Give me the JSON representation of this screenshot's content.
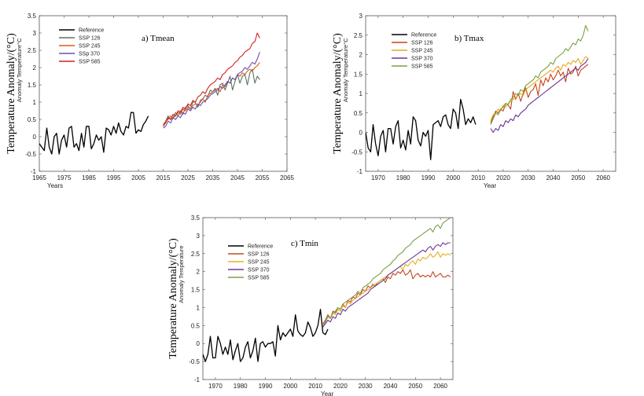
{
  "chart_data": [
    {
      "type": "line",
      "panel_title": "a) Tmean",
      "outer_ylabel": "Temperature Anomaly/(°C)",
      "ylabel": "Anomaly Temperature°C",
      "xlabel": "Years",
      "xlim": [
        1965,
        2065
      ],
      "ylim": [
        -1,
        3.5
      ],
      "xticks": [
        1965,
        1975,
        1985,
        1995,
        2005,
        2015,
        2025,
        2035,
        2045,
        2055,
        2065
      ],
      "yticks": [
        -1,
        -0.5,
        0,
        0.5,
        1,
        1.5,
        2,
        2.5,
        3,
        3.5
      ],
      "legend_position": "top-left",
      "series": [
        {
          "name": "Reference",
          "color": "#000000",
          "x_start": 1965,
          "values": [
            -0.2,
            -0.3,
            -0.4,
            0.25,
            -0.3,
            -0.5,
            0.0,
            0.1,
            -0.5,
            -0.1,
            0.05,
            -0.3,
            0.25,
            0.3,
            -0.3,
            -0.2,
            -0.4,
            0.1,
            -0.3,
            0.3,
            0.3,
            -0.35,
            -0.2,
            0.05,
            -0.1,
            0.0,
            -0.45,
            0.25,
            0.2,
            0.05,
            0.3,
            0.1,
            0.4,
            0.15,
            0.05,
            0.3,
            0.25,
            0.7,
            0.7,
            0.1,
            0.2,
            0.15,
            0.35,
            0.45,
            0.6
          ]
        },
        {
          "name": "SSP 126",
          "color": "#5a7560",
          "x_start": 2015,
          "values": [
            0.35,
            0.45,
            0.6,
            0.5,
            0.55,
            0.7,
            0.6,
            0.75,
            0.65,
            0.85,
            0.9,
            0.8,
            1.0,
            1.0,
            0.85,
            1.05,
            1.1,
            1.2,
            1.15,
            1.35,
            1.3,
            1.4,
            1.2,
            1.5,
            1.55,
            1.35,
            1.55,
            1.75,
            1.35,
            1.6,
            1.8,
            1.55,
            1.75,
            1.8,
            1.5,
            1.85,
            1.95,
            1.55,
            1.75,
            1.65
          ]
        },
        {
          "name": "SSP 245",
          "color": "#e05a1a",
          "x_start": 2015,
          "values": [
            0.3,
            0.45,
            0.5,
            0.6,
            0.55,
            0.6,
            0.7,
            0.65,
            0.8,
            0.75,
            0.85,
            0.8,
            0.9,
            0.95,
            0.9,
            1.0,
            1.1,
            1.0,
            1.2,
            1.25,
            1.3,
            1.35,
            1.4,
            1.3,
            1.5,
            1.45,
            1.6,
            1.55,
            1.7,
            1.65,
            1.8,
            1.75,
            1.85,
            1.8,
            1.9,
            1.95,
            1.9,
            2.0,
            2.05,
            2.15
          ]
        },
        {
          "name": "SSp 370",
          "color": "#6b50b0",
          "x_start": 2015,
          "values": [
            0.25,
            0.3,
            0.45,
            0.4,
            0.55,
            0.5,
            0.6,
            0.55,
            0.7,
            0.65,
            0.8,
            0.75,
            0.85,
            0.8,
            0.95,
            0.9,
            1.0,
            1.05,
            1.1,
            1.2,
            1.25,
            1.3,
            1.35,
            1.45,
            1.4,
            1.5,
            1.6,
            1.55,
            1.7,
            1.65,
            1.8,
            1.85,
            1.9,
            2.0,
            1.95,
            2.05,
            2.15,
            2.1,
            2.25,
            2.45
          ]
        },
        {
          "name": "SSP 585",
          "color": "#d42020",
          "x_start": 2015,
          "values": [
            0.3,
            0.4,
            0.55,
            0.5,
            0.65,
            0.6,
            0.75,
            0.7,
            0.85,
            0.8,
            0.95,
            0.9,
            1.05,
            1.0,
            1.15,
            1.2,
            1.3,
            1.25,
            1.4,
            1.5,
            1.55,
            1.6,
            1.7,
            1.65,
            1.8,
            1.85,
            1.95,
            2.0,
            2.05,
            2.15,
            2.2,
            2.3,
            2.35,
            2.45,
            2.5,
            2.55,
            2.7,
            2.75,
            3.0,
            2.85
          ]
        }
      ]
    },
    {
      "type": "line",
      "panel_title": "b) Tmax",
      "outer_ylabel": "Temperature Anomaly/(°C)",
      "ylabel": "Anomaly Temperature°C",
      "xlabel": "Year",
      "xlim": [
        1965,
        2065
      ],
      "ylim": [
        -1,
        3
      ],
      "xticks": [
        1970,
        1980,
        1990,
        2000,
        2010,
        2020,
        2030,
        2040,
        2050,
        2060
      ],
      "yticks": [
        -1,
        -0.5,
        0,
        0.5,
        1,
        1.5,
        2,
        2.5,
        3
      ],
      "legend_position": "top-left",
      "series": [
        {
          "name": "Reference",
          "color": "#000000",
          "x_start": 1965,
          "values": [
            0.0,
            -0.4,
            -0.5,
            0.2,
            -0.3,
            -0.6,
            -0.1,
            0.05,
            -0.5,
            0.1,
            0.1,
            -0.3,
            0.15,
            0.3,
            -0.4,
            -0.2,
            -0.45,
            0.05,
            -0.3,
            0.4,
            0.3,
            -0.2,
            -0.35,
            0.0,
            -0.1,
            0.05,
            -0.7,
            0.2,
            0.25,
            0.3,
            0.15,
            0.4,
            0.45,
            0.2,
            0.1,
            0.6,
            0.5,
            0.1,
            0.85,
            0.6,
            0.2,
            0.35,
            0.25,
            0.4,
            0.2
          ]
        },
        {
          "name": "SSP 126",
          "color": "#c8421a",
          "x_start": 2015,
          "values": [
            0.25,
            0.4,
            0.55,
            0.5,
            0.6,
            0.55,
            0.75,
            0.7,
            0.6,
            1.05,
            0.85,
            1.0,
            0.8,
            1.0,
            1.15,
            0.9,
            1.05,
            1.1,
            1.25,
            0.95,
            1.35,
            1.2,
            1.4,
            1.3,
            1.5,
            1.35,
            1.45,
            1.6,
            1.45,
            1.55,
            1.3,
            1.65,
            1.5,
            1.55,
            1.7,
            1.45,
            1.6,
            1.65,
            1.7,
            1.75
          ]
        },
        {
          "name": "SSP 245",
          "color": "#e8a820",
          "x_start": 2015,
          "values": [
            0.3,
            0.45,
            0.5,
            0.6,
            0.55,
            0.7,
            0.65,
            0.75,
            0.8,
            0.85,
            0.9,
            0.95,
            1.0,
            0.95,
            1.1,
            1.15,
            1.2,
            1.25,
            1.3,
            1.35,
            1.4,
            1.45,
            1.5,
            1.55,
            1.6,
            1.55,
            1.65,
            1.7,
            1.6,
            1.75,
            1.7,
            1.8,
            1.75,
            1.85,
            1.8,
            1.9,
            1.75,
            1.85,
            1.95,
            1.9
          ]
        },
        {
          "name": "SSP 370",
          "color": "#6b3090",
          "x_start": 2015,
          "values": [
            0.1,
            0.0,
            0.1,
            0.05,
            0.2,
            0.15,
            0.3,
            0.25,
            0.35,
            0.3,
            0.45,
            0.4,
            0.5,
            0.55,
            0.6,
            0.7,
            0.75,
            0.8,
            0.85,
            0.9,
            0.95,
            1.0,
            1.05,
            1.1,
            1.15,
            1.2,
            1.25,
            1.3,
            1.35,
            1.4,
            1.45,
            1.5,
            1.55,
            1.6,
            1.65,
            1.6,
            1.7,
            1.75,
            1.8,
            1.9
          ]
        },
        {
          "name": "SSP 585",
          "color": "#78a040",
          "x_start": 2015,
          "values": [
            0.2,
            0.35,
            0.5,
            0.45,
            0.6,
            0.65,
            0.75,
            0.7,
            0.85,
            0.9,
            1.0,
            0.95,
            1.1,
            1.05,
            1.2,
            1.25,
            1.3,
            1.35,
            1.45,
            1.4,
            1.55,
            1.6,
            1.65,
            1.7,
            1.8,
            1.75,
            1.9,
            1.95,
            2.0,
            2.05,
            2.15,
            2.1,
            2.2,
            2.3,
            2.25,
            2.4,
            2.35,
            2.5,
            2.75,
            2.6
          ]
        }
      ]
    },
    {
      "type": "line",
      "panel_title": "c) Tmin",
      "outer_ylabel": "Temperature Anomaly/(°C)",
      "ylabel": "Anomaly Temperature",
      "xlabel": "Year",
      "xlim": [
        1965,
        2065
      ],
      "ylim": [
        -1,
        3.5
      ],
      "xticks": [
        1970,
        1980,
        1990,
        2000,
        2010,
        2020,
        2030,
        2040,
        2050,
        2060
      ],
      "yticks": [
        -1,
        -0.5,
        0,
        0.5,
        1,
        1.5,
        2,
        2.5,
        3,
        3.5
      ],
      "legend_position": "top-left",
      "series": [
        {
          "name": "Reference",
          "color": "#000000",
          "x_start": 1965,
          "values": [
            -0.3,
            -0.5,
            -0.3,
            0.2,
            -0.4,
            -0.4,
            0.2,
            0.0,
            -0.3,
            -0.1,
            -0.3,
            0.1,
            -0.45,
            -0.2,
            0.0,
            -0.5,
            -0.4,
            -0.1,
            0.05,
            -0.4,
            -0.2,
            0.15,
            -0.5,
            0.0,
            0.05,
            -0.1,
            0.0,
            0.0,
            0.05,
            -0.35,
            0.5,
            0.1,
            0.3,
            0.2,
            0.3,
            0.4,
            0.2,
            0.8,
            0.35,
            0.25,
            0.2,
            0.3,
            0.6,
            0.45,
            0.2,
            0.3,
            0.5,
            0.95,
            0.3,
            0.25,
            0.4
          ]
        },
        {
          "name": "SSP 126",
          "color": "#c04a20",
          "x_start": 2013,
          "values": [
            0.55,
            0.65,
            0.8,
            0.7,
            0.9,
            0.85,
            1.0,
            0.95,
            1.1,
            1.0,
            1.2,
            1.15,
            1.3,
            1.25,
            1.4,
            1.35,
            1.5,
            1.45,
            1.6,
            1.55,
            1.65,
            1.6,
            1.7,
            1.75,
            1.8,
            1.7,
            1.85,
            1.8,
            1.95,
            1.9,
            2.0,
            1.95,
            2.05,
            1.9,
            1.95,
            2.05,
            1.8,
            1.9,
            1.95,
            1.85,
            1.9,
            1.85,
            1.9,
            1.85,
            2.0,
            1.85,
            1.9,
            1.95,
            1.85,
            1.85,
            1.9,
            1.85
          ]
        },
        {
          "name": "SSP 245",
          "color": "#e8b020",
          "x_start": 2013,
          "values": [
            0.5,
            0.6,
            0.75,
            0.7,
            0.85,
            0.8,
            0.95,
            0.9,
            1.05,
            1.0,
            1.15,
            1.1,
            1.2,
            1.25,
            1.3,
            1.35,
            1.4,
            1.45,
            1.5,
            1.55,
            1.6,
            1.65,
            1.7,
            1.75,
            1.8,
            1.85,
            1.9,
            1.95,
            2.0,
            2.05,
            2.1,
            2.15,
            2.05,
            2.2,
            2.15,
            2.25,
            2.3,
            2.2,
            2.35,
            2.3,
            2.4,
            2.35,
            2.4,
            2.5,
            2.4,
            2.45,
            2.55,
            2.4,
            2.5,
            2.45,
            2.5,
            2.45
          ]
        },
        {
          "name": "SSP 370",
          "color": "#6a3a9a",
          "x_start": 2013,
          "values": [
            0.45,
            0.55,
            0.65,
            0.6,
            0.75,
            0.7,
            0.85,
            0.8,
            0.95,
            0.9,
            1.0,
            1.05,
            1.1,
            1.15,
            1.2,
            1.25,
            1.3,
            1.35,
            1.4,
            1.5,
            1.55,
            1.6,
            1.65,
            1.7,
            1.75,
            1.8,
            1.9,
            1.95,
            2.0,
            2.05,
            2.1,
            2.15,
            2.2,
            2.25,
            2.3,
            2.35,
            2.4,
            2.45,
            2.5,
            2.55,
            2.6,
            2.55,
            2.65,
            2.7,
            2.6,
            2.7,
            2.75,
            2.7,
            2.8,
            2.75,
            2.8,
            2.8
          ]
        },
        {
          "name": "SSP 585",
          "color": "#7aa048",
          "x_start": 2013,
          "values": [
            0.5,
            0.6,
            0.75,
            0.7,
            0.85,
            0.9,
            1.0,
            0.95,
            1.1,
            1.15,
            1.2,
            1.25,
            1.3,
            1.35,
            1.45,
            1.4,
            1.55,
            1.6,
            1.65,
            1.7,
            1.8,
            1.85,
            1.9,
            1.95,
            2.05,
            2.1,
            2.15,
            2.2,
            2.3,
            2.35,
            2.45,
            2.5,
            2.55,
            2.65,
            2.7,
            2.75,
            2.85,
            2.9,
            2.95,
            3.0,
            3.05,
            3.1,
            3.15,
            3.2,
            3.1,
            3.25,
            3.3,
            3.2,
            3.35,
            3.4,
            3.45,
            3.5
          ]
        }
      ]
    }
  ]
}
